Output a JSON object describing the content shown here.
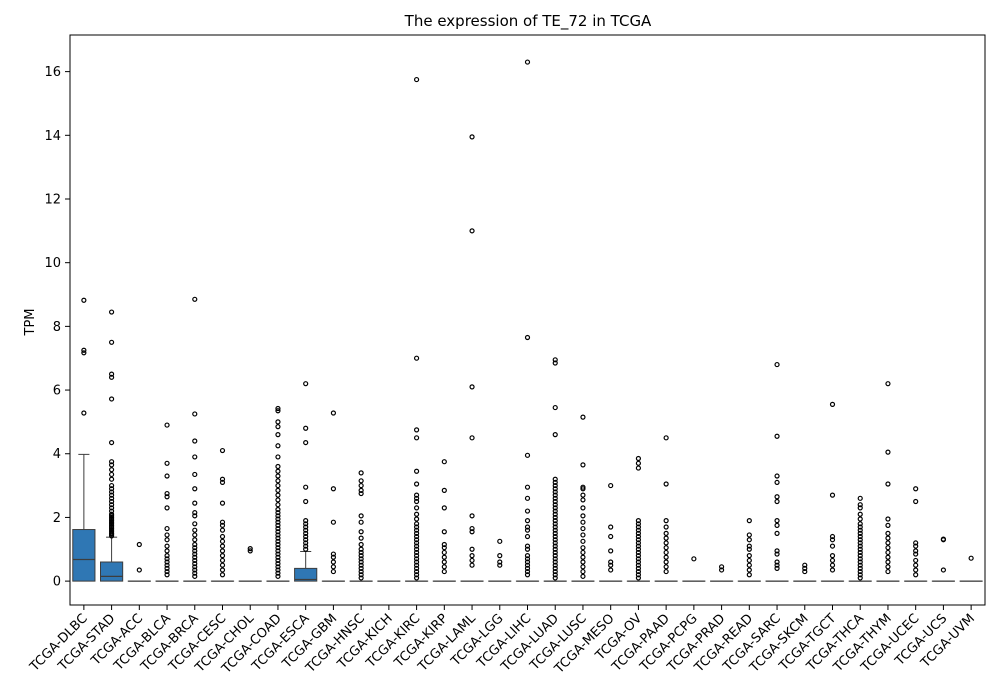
{
  "chart_data": {
    "type": "box",
    "title": "The expression of TE_72 in TCGA",
    "xlabel": "",
    "ylabel": "TPM",
    "ylim": [
      -0.75,
      17.15
    ],
    "yticks": [
      0,
      2,
      4,
      6,
      8,
      10,
      12,
      14,
      16
    ],
    "grid": false,
    "box_color": "#2f77b4",
    "categories": [
      "TCGA-DLBC",
      "TCGA-STAD",
      "TCGA-ACC",
      "TCGA-BLCA",
      "TCGA-BRCA",
      "TCGA-CESC",
      "TCGA-CHOL",
      "TCGA-COAD",
      "TCGA-ESCA",
      "TCGA-GBM",
      "TCGA-HNSC",
      "TCGA-KICH",
      "TCGA-KIRC",
      "TCGA-KIRP",
      "TCGA-LAML",
      "TCGA-LGG",
      "TCGA-LIHC",
      "TCGA-LUAD",
      "TCGA-LUSC",
      "TCGA-MESO",
      "TCGA-OV",
      "TCGA-PAAD",
      "TCGA-PCPG",
      "TCGA-PRAD",
      "TCGA-READ",
      "TCGA-SARC",
      "TCGA-SKCM",
      "TCGA-TGCT",
      "TCGA-THCA",
      "TCGA-THYM",
      "TCGA-UCEC",
      "TCGA-UCS",
      "TCGA-UVM"
    ],
    "boxes": [
      {
        "q1": 0,
        "median": 0.68,
        "q3": 1.62,
        "whisker_low": 0,
        "whisker_high": 3.98,
        "outliers": [
          5.28,
          7.17,
          7.25,
          8.82
        ]
      },
      {
        "q1": 0,
        "median": 0.15,
        "q3": 0.6,
        "whisker_low": 0,
        "whisker_high": 1.38,
        "outliers": [
          1.42,
          1.47,
          1.5,
          1.55,
          1.6,
          1.65,
          1.7,
          1.75,
          1.8,
          1.85,
          1.9,
          1.95,
          2.0,
          2.05,
          2.1,
          2.2,
          2.3,
          2.4,
          2.5,
          2.6,
          2.7,
          2.8,
          2.9,
          3.0,
          3.2,
          3.35,
          3.5,
          3.65,
          3.75,
          4.35,
          5.72,
          6.4,
          6.5,
          7.5,
          8.45
        ]
      },
      {
        "q1": 0,
        "median": 0,
        "q3": 0,
        "whisker_low": 0,
        "whisker_high": 0,
        "outliers": [
          0.35,
          1.15
        ]
      },
      {
        "q1": 0,
        "median": 0,
        "q3": 0,
        "whisker_low": 0,
        "whisker_high": 0,
        "outliers": [
          0.2,
          0.3,
          0.4,
          0.5,
          0.6,
          0.7,
          0.8,
          0.95,
          1.1,
          1.3,
          1.45,
          1.65,
          2.3,
          2.65,
          2.75,
          3.3,
          3.7,
          4.9
        ]
      },
      {
        "q1": 0,
        "median": 0,
        "q3": 0,
        "whisker_low": 0,
        "whisker_high": 0,
        "outliers": [
          0.15,
          0.25,
          0.35,
          0.45,
          0.55,
          0.65,
          0.75,
          0.85,
          0.95,
          1.05,
          1.15,
          1.3,
          1.45,
          1.6,
          1.8,
          2.05,
          2.15,
          2.45,
          2.9,
          3.35,
          3.9,
          4.4,
          5.25,
          8.85
        ]
      },
      {
        "q1": 0,
        "median": 0,
        "q3": 0,
        "whisker_low": 0,
        "whisker_high": 0,
        "outliers": [
          0.2,
          0.35,
          0.5,
          0.65,
          0.8,
          0.95,
          1.1,
          1.25,
          1.4,
          1.6,
          1.75,
          1.85,
          2.45,
          3.1,
          3.2,
          4.1
        ]
      },
      {
        "q1": 0,
        "median": 0,
        "q3": 0,
        "whisker_low": 0,
        "whisker_high": 0,
        "outliers": [
          0.95,
          1.02
        ]
      },
      {
        "q1": 0,
        "median": 0,
        "q3": 0,
        "whisker_low": 0,
        "whisker_high": 0,
        "outliers": [
          0.15,
          0.25,
          0.35,
          0.45,
          0.55,
          0.65,
          0.75,
          0.85,
          0.95,
          1.05,
          1.15,
          1.25,
          1.35,
          1.45,
          1.55,
          1.65,
          1.75,
          1.85,
          1.95,
          2.05,
          2.15,
          2.25,
          2.4,
          2.55,
          2.7,
          2.85,
          3.0,
          3.15,
          3.3,
          3.45,
          3.6,
          3.9,
          4.25,
          4.6,
          4.85,
          5.0,
          5.35,
          5.42
        ]
      },
      {
        "q1": 0,
        "median": 0.05,
        "q3": 0.4,
        "whisker_low": 0,
        "whisker_high": 0.93,
        "outliers": [
          1.0,
          1.1,
          1.2,
          1.3,
          1.4,
          1.5,
          1.6,
          1.7,
          1.8,
          1.9,
          2.5,
          2.95,
          4.35,
          4.8,
          6.2
        ]
      },
      {
        "q1": 0,
        "median": 0,
        "q3": 0,
        "whisker_low": 0,
        "whisker_high": 0,
        "outliers": [
          0.3,
          0.45,
          0.6,
          0.75,
          0.85,
          1.85,
          2.9,
          5.28
        ]
      },
      {
        "q1": 0,
        "median": 0,
        "q3": 0,
        "whisker_low": 0,
        "whisker_high": 0,
        "outliers": [
          0.1,
          0.2,
          0.3,
          0.4,
          0.5,
          0.6,
          0.7,
          0.8,
          0.9,
          1.0,
          1.15,
          1.35,
          1.55,
          1.85,
          2.05,
          2.75,
          2.85,
          3.0,
          3.15,
          3.4
        ]
      },
      {
        "q1": 0,
        "median": 0,
        "q3": 0,
        "whisker_low": 0,
        "whisker_high": 0,
        "outliers": []
      },
      {
        "q1": 0,
        "median": 0,
        "q3": 0,
        "whisker_low": 0,
        "whisker_high": 0,
        "outliers": [
          0.1,
          0.2,
          0.3,
          0.4,
          0.5,
          0.6,
          0.7,
          0.8,
          0.9,
          1.0,
          1.1,
          1.2,
          1.3,
          1.4,
          1.5,
          1.6,
          1.7,
          1.8,
          1.95,
          2.1,
          2.3,
          2.5,
          2.6,
          2.7,
          3.05,
          3.45,
          4.5,
          4.75,
          7.0,
          15.75
        ]
      },
      {
        "q1": 0,
        "median": 0,
        "q3": 0,
        "whisker_low": 0,
        "whisker_high": 0,
        "outliers": [
          0.3,
          0.45,
          0.6,
          0.75,
          0.9,
          1.05,
          1.15,
          1.55,
          2.3,
          2.85,
          3.75
        ]
      },
      {
        "q1": 0,
        "median": 0,
        "q3": 0,
        "whisker_low": 0,
        "whisker_high": 0,
        "outliers": [
          0.5,
          0.65,
          0.8,
          1.0,
          1.55,
          1.65,
          2.05,
          4.5,
          6.1,
          11.0,
          13.95
        ]
      },
      {
        "q1": 0,
        "median": 0,
        "q3": 0,
        "whisker_low": 0,
        "whisker_high": 0,
        "outliers": [
          0.5,
          0.6,
          0.8,
          1.25
        ]
      },
      {
        "q1": 0,
        "median": 0,
        "q3": 0,
        "whisker_low": 0,
        "whisker_high": 0,
        "outliers": [
          0.2,
          0.3,
          0.4,
          0.5,
          0.6,
          0.7,
          0.8,
          1.0,
          1.1,
          1.4,
          1.6,
          1.7,
          1.9,
          2.2,
          2.6,
          2.95,
          3.95,
          7.65,
          16.3
        ]
      },
      {
        "q1": 0,
        "median": 0,
        "q3": 0,
        "whisker_low": 0,
        "whisker_high": 0,
        "outliers": [
          0.1,
          0.2,
          0.3,
          0.4,
          0.5,
          0.6,
          0.7,
          0.8,
          0.9,
          1.0,
          1.1,
          1.2,
          1.3,
          1.4,
          1.5,
          1.6,
          1.7,
          1.8,
          1.9,
          2.0,
          2.1,
          2.2,
          2.3,
          2.4,
          2.5,
          2.6,
          2.7,
          2.8,
          2.9,
          3.0,
          3.1,
          3.2,
          4.6,
          5.45,
          6.85,
          6.95
        ]
      },
      {
        "q1": 0,
        "median": 0,
        "q3": 0,
        "whisker_low": 0,
        "whisker_high": 0,
        "outliers": [
          0.15,
          0.3,
          0.45,
          0.6,
          0.75,
          0.9,
          1.05,
          1.25,
          1.45,
          1.65,
          1.85,
          2.05,
          2.3,
          2.55,
          2.7,
          2.9,
          2.95,
          3.65,
          5.15
        ]
      },
      {
        "q1": 0,
        "median": 0,
        "q3": 0,
        "whisker_low": 0,
        "whisker_high": 0,
        "outliers": [
          0.35,
          0.5,
          0.6,
          0.95,
          1.4,
          1.7,
          3.0
        ]
      },
      {
        "q1": 0,
        "median": 0,
        "q3": 0,
        "whisker_low": 0,
        "whisker_high": 0,
        "outliers": [
          0.1,
          0.2,
          0.3,
          0.4,
          0.5,
          0.6,
          0.7,
          0.8,
          0.9,
          1.0,
          1.1,
          1.2,
          1.3,
          1.4,
          1.5,
          1.6,
          1.7,
          1.8,
          1.9,
          3.55,
          3.7,
          3.85
        ]
      },
      {
        "q1": 0,
        "median": 0,
        "q3": 0,
        "whisker_low": 0,
        "whisker_high": 0,
        "outliers": [
          0.3,
          0.45,
          0.6,
          0.75,
          0.9,
          1.05,
          1.2,
          1.35,
          1.5,
          1.7,
          1.9,
          3.05,
          4.5
        ]
      },
      {
        "q1": 0,
        "median": 0,
        "q3": 0,
        "whisker_low": 0,
        "whisker_high": 0,
        "outliers": [
          0.7
        ]
      },
      {
        "q1": 0,
        "median": 0,
        "q3": 0,
        "whisker_low": 0,
        "whisker_high": 0,
        "outliers": [
          0.35,
          0.45
        ]
      },
      {
        "q1": 0,
        "median": 0,
        "q3": 0,
        "whisker_low": 0,
        "whisker_high": 0,
        "outliers": [
          0.2,
          0.35,
          0.5,
          0.65,
          0.8,
          1.0,
          1.1,
          1.3,
          1.45,
          1.9
        ]
      },
      {
        "q1": 0,
        "median": 0,
        "q3": 0,
        "whisker_low": 0,
        "whisker_high": 0,
        "outliers": [
          0.4,
          0.5,
          0.6,
          0.85,
          0.95,
          1.5,
          1.75,
          1.9,
          2.5,
          2.65,
          3.1,
          3.3,
          4.55,
          6.8
        ]
      },
      {
        "q1": 0,
        "median": 0,
        "q3": 0,
        "whisker_low": 0,
        "whisker_high": 0,
        "outliers": [
          0.3,
          0.4,
          0.5
        ]
      },
      {
        "q1": 0,
        "median": 0,
        "q3": 0,
        "whisker_low": 0,
        "whisker_high": 0,
        "outliers": [
          0.35,
          0.5,
          0.65,
          0.8,
          1.1,
          1.3,
          1.4,
          2.7,
          5.55
        ]
      },
      {
        "q1": 0,
        "median": 0,
        "q3": 0,
        "whisker_low": 0,
        "whisker_high": 0,
        "outliers": [
          0.1,
          0.2,
          0.3,
          0.4,
          0.5,
          0.6,
          0.7,
          0.8,
          0.9,
          1.0,
          1.1,
          1.2,
          1.3,
          1.4,
          1.5,
          1.6,
          1.7,
          1.8,
          1.95,
          2.1,
          2.3,
          2.4,
          2.6
        ]
      },
      {
        "q1": 0,
        "median": 0,
        "q3": 0,
        "whisker_low": 0,
        "whisker_high": 0,
        "outliers": [
          0.3,
          0.45,
          0.6,
          0.75,
          0.9,
          1.05,
          1.2,
          1.35,
          1.5,
          1.75,
          1.95,
          3.05,
          4.05,
          6.2
        ]
      },
      {
        "q1": 0,
        "median": 0,
        "q3": 0,
        "whisker_low": 0,
        "whisker_high": 0,
        "outliers": [
          0.2,
          0.35,
          0.5,
          0.65,
          0.85,
          0.95,
          1.1,
          1.2,
          2.5,
          2.9
        ]
      },
      {
        "q1": 0,
        "median": 0,
        "q3": 0,
        "whisker_low": 0,
        "whisker_high": 0,
        "outliers": [
          0.35,
          1.3,
          1.32
        ]
      },
      {
        "q1": 0,
        "median": 0,
        "q3": 0,
        "whisker_low": 0,
        "whisker_high": 0,
        "outliers": [
          0.72
        ]
      }
    ]
  }
}
